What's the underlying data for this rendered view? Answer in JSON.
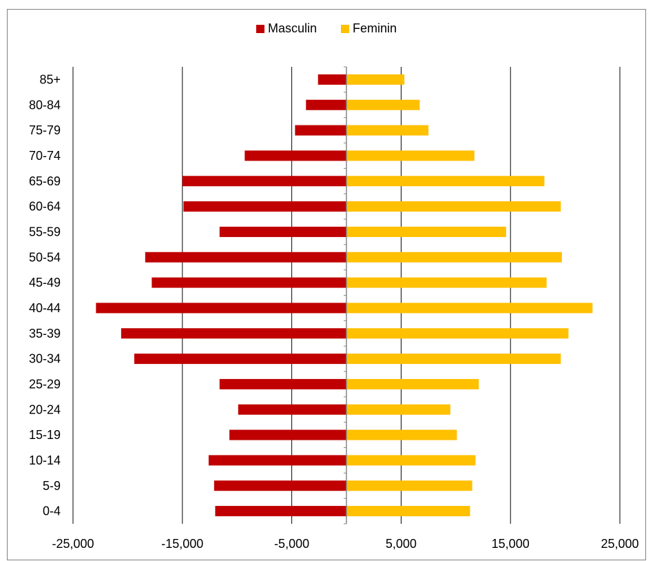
{
  "chart_data": {
    "type": "bar",
    "orientation": "horizontal",
    "title": "",
    "categories": [
      "85+",
      "80-84",
      "75-79",
      "70-74",
      "65-69",
      "60-64",
      "55-59",
      "50-54",
      "45-49",
      "40-44",
      "35-39",
      "30-34",
      "25-29",
      "20-24",
      "15-19",
      "10-14",
      "5-9",
      "0-4"
    ],
    "series": [
      {
        "name": "Masculin",
        "color": "#C00000",
        "values": [
          -2600,
          -3700,
          -4700,
          -9300,
          -15000,
          -14900,
          -11600,
          -18400,
          -17800,
          -22900,
          -20600,
          -19400,
          -11600,
          -9900,
          -10700,
          -12600,
          -12100,
          -12000
        ]
      },
      {
        "name": "Feminin",
        "color": "#FFC000",
        "values": [
          5300,
          6700,
          7500,
          11700,
          18100,
          19600,
          14600,
          19700,
          18300,
          22500,
          20300,
          19600,
          12100,
          9500,
          10100,
          11800,
          11500,
          11300
        ]
      }
    ],
    "xlim": [
      -25000,
      25000
    ],
    "x_ticks": [
      "-25,000",
      "-15,000",
      "-5,000",
      "5,000",
      "15,000",
      "25,000"
    ],
    "x_tick_values": [
      -25000,
      -15000,
      -5000,
      5000,
      15000,
      25000
    ],
    "grid": "vertical",
    "legend_position": "top"
  }
}
